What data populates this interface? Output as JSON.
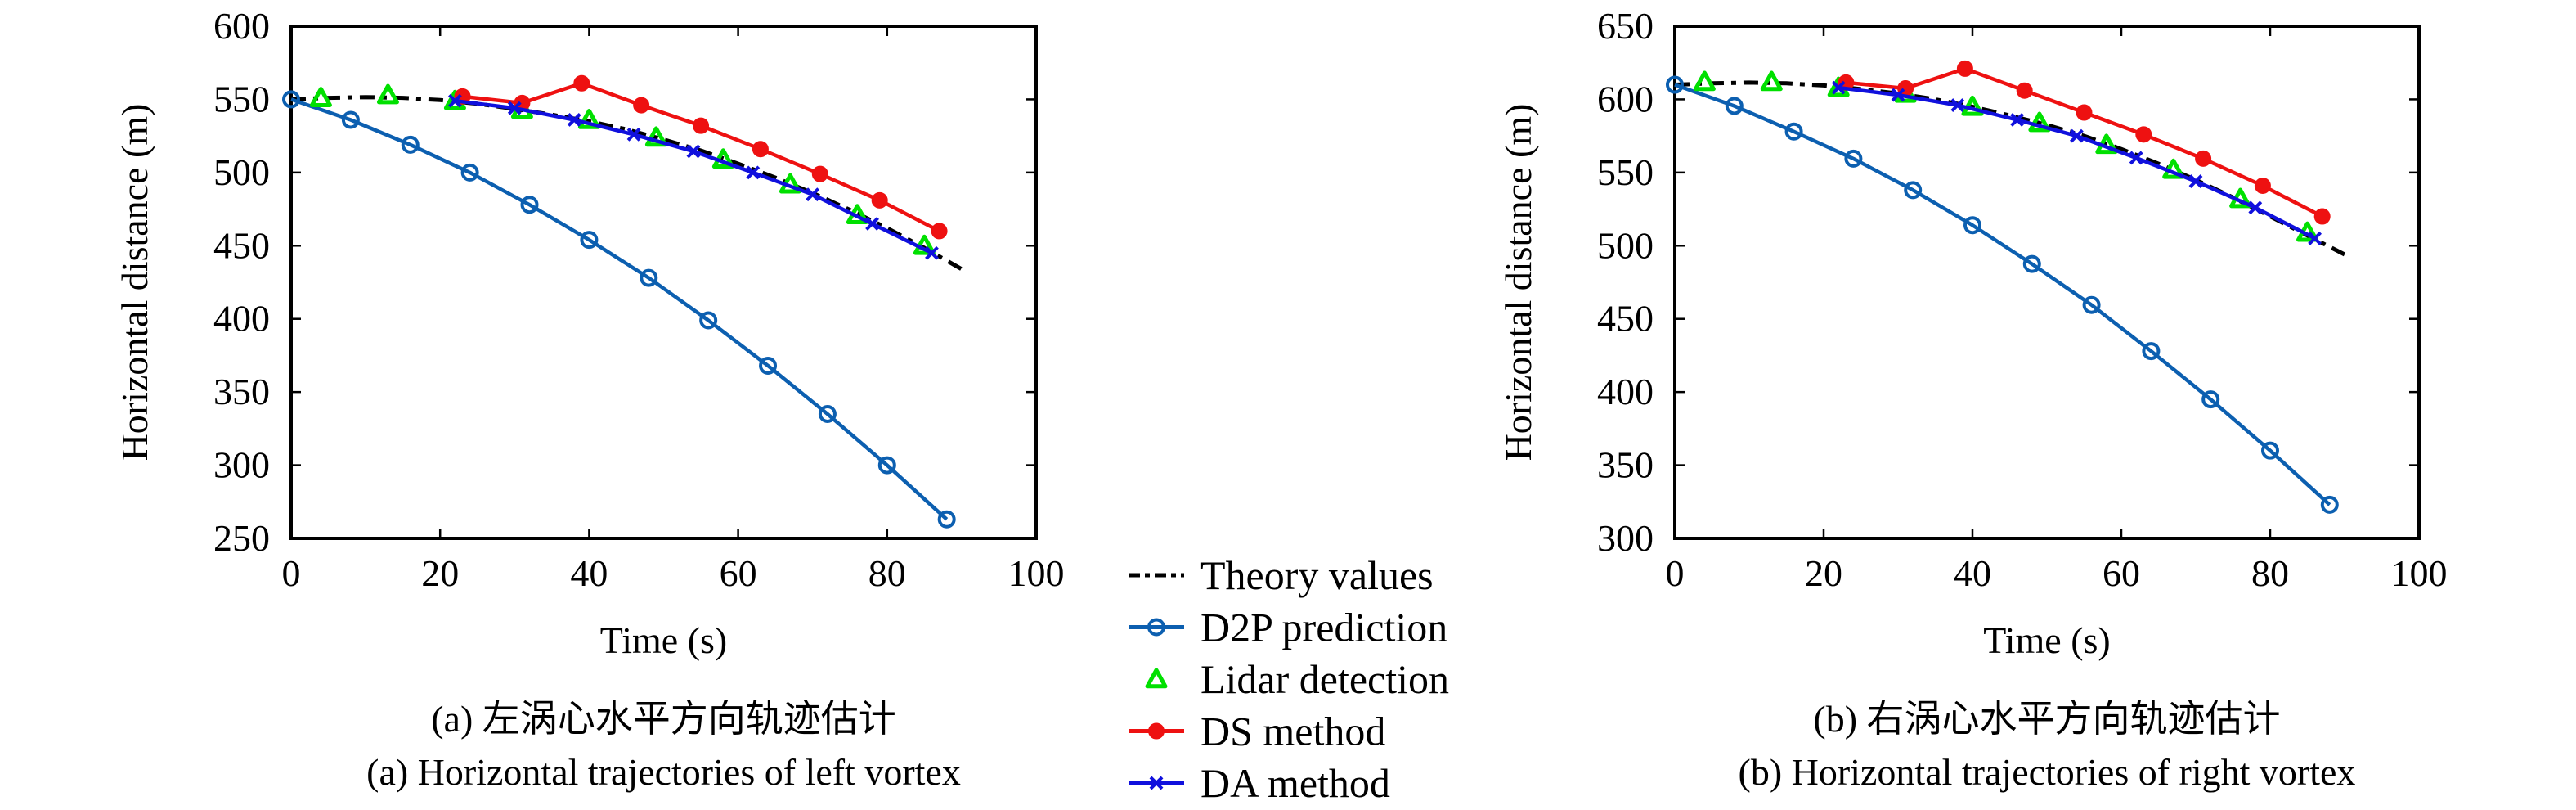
{
  "legend": {
    "placement": "bottom-center",
    "items": [
      {
        "label": "Theory values",
        "color": "#000000",
        "marker": "none",
        "line": "dash-dot"
      },
      {
        "label": "D2P prediction",
        "color": "#0c5fb0",
        "marker": "circle-open",
        "line": "solid"
      },
      {
        "label": "Lidar detection",
        "color": "#00e000",
        "marker": "triangle-open",
        "line": "none"
      },
      {
        "label": "DS method",
        "color": "#ee1111",
        "marker": "circle-filled",
        "line": "solid"
      },
      {
        "label": "DA method",
        "color": "#1010dd",
        "marker": "x",
        "line": "solid"
      }
    ]
  },
  "chart_data": [
    {
      "type": "line",
      "caption_cn": "(a) 左涡心水平方向轨迹估计",
      "caption_en": "(a) Horizontal trajectories of left vortex",
      "xlabel": "Time (s)",
      "ylabel": "Horizontal distance (m)",
      "xlim": [
        0,
        100
      ],
      "ylim": [
        250,
        600
      ],
      "xticks": [
        0,
        20,
        40,
        60,
        80,
        100
      ],
      "yticks": [
        250,
        300,
        350,
        400,
        450,
        500,
        550,
        600
      ],
      "grid": false,
      "series": [
        {
          "name": "Theory values",
          "x": [
            0,
            5,
            10,
            15,
            20,
            25,
            30,
            35,
            40,
            45,
            50,
            55,
            60,
            65,
            70,
            75,
            80,
            85,
            90
          ],
          "y": [
            550,
            551,
            551.5,
            551,
            549.5,
            547,
            543.5,
            539.5,
            535,
            529.5,
            522.5,
            515,
            506,
            496.5,
            486,
            474.5,
            462,
            448.5,
            434
          ]
        },
        {
          "name": "D2P prediction",
          "x": [
            0,
            8,
            16,
            24,
            32,
            40,
            48,
            56,
            64,
            72,
            80,
            88
          ],
          "y": [
            550,
            536,
            519,
            500,
            478,
            454,
            428,
            399,
            368,
            335,
            300,
            263
          ]
        },
        {
          "name": "Lidar detection",
          "x": [
            4,
            13,
            22,
            31,
            40,
            49,
            58,
            67,
            76,
            85
          ],
          "y": [
            551,
            553,
            549,
            543,
            536,
            524,
            509,
            492,
            471,
            450
          ]
        },
        {
          "name": "DS method",
          "x": [
            23,
            31,
            39,
            47,
            55,
            63,
            71,
            79,
            87
          ],
          "y": [
            552,
            547.5,
            561,
            546,
            532,
            516,
            499,
            481,
            460
          ]
        },
        {
          "name": "DA method",
          "x": [
            22,
            30,
            38,
            46,
            54,
            62,
            70,
            78,
            86
          ],
          "y": [
            549,
            544,
            536,
            526,
            514.5,
            500,
            485,
            465,
            445
          ]
        }
      ]
    },
    {
      "type": "line",
      "caption_cn": "(b) 右涡心水平方向轨迹估计",
      "caption_en": "(b) Horizontal trajectories of right vortex",
      "xlabel": "Time (s)",
      "ylabel": "Horizontal distance (m)",
      "xlim": [
        0,
        100
      ],
      "ylim": [
        300,
        650
      ],
      "xticks": [
        0,
        20,
        40,
        60,
        80,
        100
      ],
      "yticks": [
        300,
        350,
        400,
        450,
        500,
        550,
        600,
        650
      ],
      "grid": false,
      "series": [
        {
          "name": "Theory values",
          "x": [
            0,
            5,
            10,
            15,
            20,
            25,
            30,
            35,
            40,
            45,
            50,
            55,
            60,
            65,
            70,
            75,
            80,
            85,
            90
          ],
          "y": [
            610,
            611,
            611.5,
            611,
            609.5,
            607,
            604,
            600,
            595,
            589,
            582.5,
            575,
            566,
            556,
            545,
            533,
            520,
            507,
            494
          ]
        },
        {
          "name": "D2P prediction",
          "x": [
            0,
            8,
            16,
            24,
            32,
            40,
            48,
            56,
            64,
            72,
            80,
            88
          ],
          "y": [
            610,
            595.5,
            578,
            559.5,
            538,
            514,
            487.5,
            459.5,
            428,
            395,
            360,
            323
          ]
        },
        {
          "name": "Lidar detection",
          "x": [
            4,
            13,
            22,
            31,
            40,
            49,
            58,
            67,
            76,
            85
          ],
          "y": [
            612,
            612,
            608,
            604,
            595,
            584,
            569,
            552,
            532,
            509
          ]
        },
        {
          "name": "DS method",
          "x": [
            23,
            31,
            39,
            47,
            55,
            63,
            71,
            79,
            87
          ],
          "y": [
            611.5,
            607.5,
            621,
            606,
            591,
            576,
            559.5,
            541,
            520
          ]
        },
        {
          "name": "DA method",
          "x": [
            22,
            30,
            38,
            46,
            54,
            62,
            70,
            78,
            86
          ],
          "y": [
            608,
            603,
            596,
            586,
            575,
            560,
            544,
            526,
            505
          ]
        }
      ]
    }
  ]
}
